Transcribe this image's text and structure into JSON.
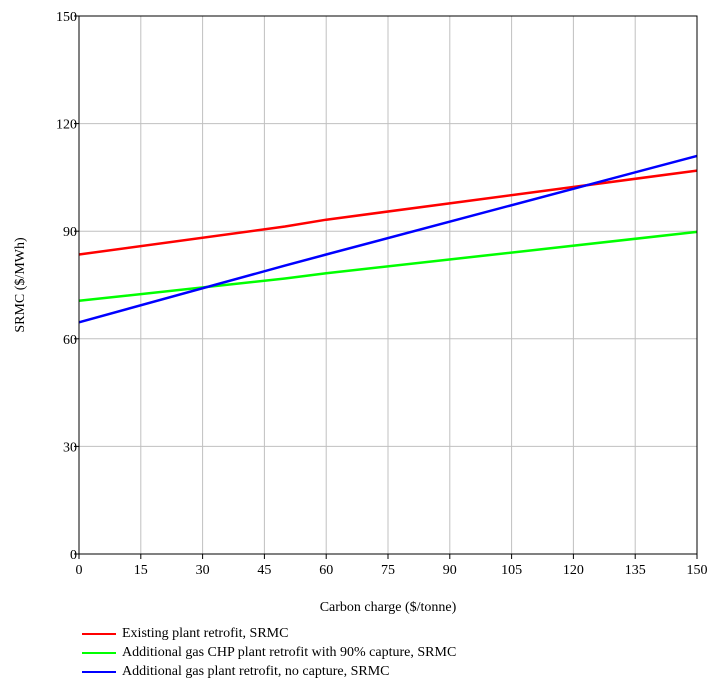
{
  "chart_data": {
    "type": "line",
    "title": "",
    "xlabel": "Carbon charge ($/tonne)",
    "ylabel": "SRMC ($/MWh)",
    "xlim": [
      0,
      150
    ],
    "ylim": [
      0,
      150
    ],
    "xticks": [
      0,
      15,
      30,
      45,
      60,
      75,
      90,
      105,
      120,
      135,
      150
    ],
    "yticks": [
      0,
      30,
      60,
      90,
      120,
      150
    ],
    "grid": true,
    "legend_position": "bottom",
    "series": [
      {
        "name": "Existing plant retrofit, SRMC",
        "color": "#ff0000",
        "x": [
          0,
          50,
          60,
          150
        ],
        "y": [
          83.5,
          91.3,
          93.2,
          106.9
        ]
      },
      {
        "name": "Additional gas CHP plant retrofit with 90% capture, SRMC",
        "color": "#00ff00",
        "x": [
          0,
          50,
          60,
          150
        ],
        "y": [
          70.6,
          76.8,
          78.3,
          89.8
        ]
      },
      {
        "name": "Additional gas plant retrofit, no capture, SRMC",
        "color": "#0000ff",
        "x": [
          0,
          50,
          60,
          150
        ],
        "y": [
          64.6,
          80.4,
          83.5,
          111.0
        ]
      }
    ]
  }
}
